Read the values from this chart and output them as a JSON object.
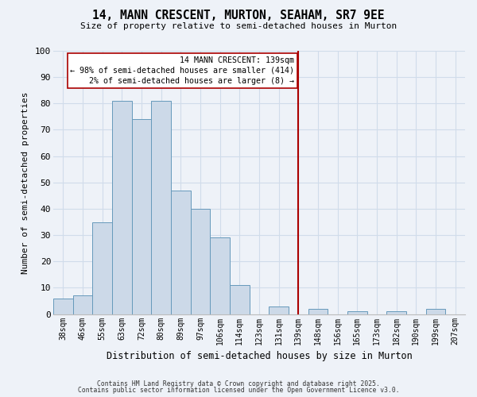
{
  "title": "14, MANN CRESCENT, MURTON, SEAHAM, SR7 9EE",
  "subtitle": "Size of property relative to semi-detached houses in Murton",
  "xlabel": "Distribution of semi-detached houses by size in Murton",
  "ylabel": "Number of semi-detached properties",
  "bin_labels": [
    "38sqm",
    "46sqm",
    "55sqm",
    "63sqm",
    "72sqm",
    "80sqm",
    "89sqm",
    "97sqm",
    "106sqm",
    "114sqm",
    "123sqm",
    "131sqm",
    "139sqm",
    "148sqm",
    "156sqm",
    "165sqm",
    "173sqm",
    "182sqm",
    "190sqm",
    "199sqm",
    "207sqm"
  ],
  "bar_values": [
    6,
    7,
    35,
    81,
    74,
    81,
    47,
    40,
    29,
    11,
    0,
    3,
    0,
    2,
    0,
    1,
    0,
    1,
    0,
    2,
    0
  ],
  "bar_color": "#ccd9e8",
  "bar_edge_color": "#6699bb",
  "background_color": "#eef2f8",
  "grid_color": "#d0dcea",
  "vline_x_label": "139sqm",
  "vline_color": "#aa0000",
  "annotation_title": "14 MANN CRESCENT: 139sqm",
  "annotation_line1": "← 98% of semi-detached houses are smaller (414)",
  "annotation_line2": "2% of semi-detached houses are larger (8) →",
  "annotation_box_color": "#ffffff",
  "annotation_border_color": "#aa0000",
  "footer_line1": "Contains HM Land Registry data © Crown copyright and database right 2025.",
  "footer_line2": "Contains public sector information licensed under the Open Government Licence v3.0.",
  "ylim": [
    0,
    100
  ],
  "yticks": [
    0,
    10,
    20,
    30,
    40,
    50,
    60,
    70,
    80,
    90,
    100
  ]
}
